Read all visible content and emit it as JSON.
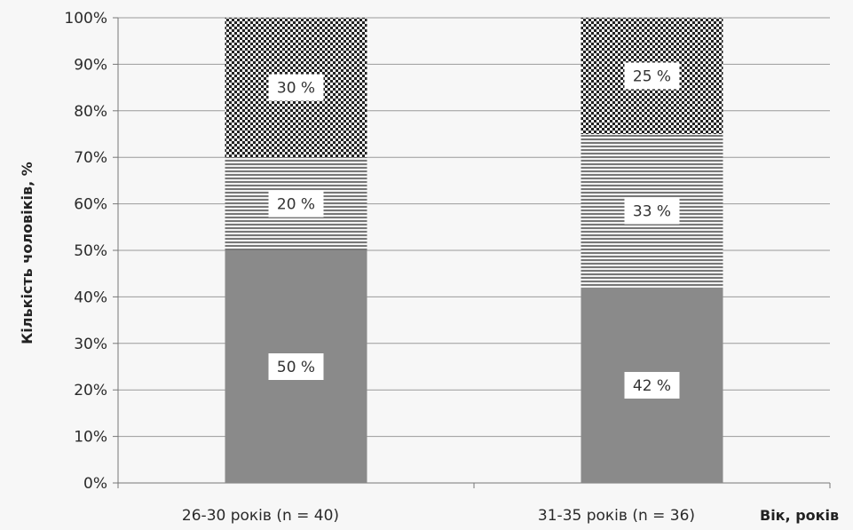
{
  "chart_data": {
    "type": "bar",
    "stacked": true,
    "title": "",
    "xlabel": "Вік, років",
    "ylabel": "Кількість чоловіків, %",
    "ylim": [
      0,
      100
    ],
    "yticks": [
      "0%",
      "10%",
      "20%",
      "30%",
      "40%",
      "50%",
      "60%",
      "70%",
      "80%",
      "90%",
      "100%"
    ],
    "grid": true,
    "legend": "none",
    "categories": [
      "26-30 років (n = 40)",
      "31-35 років (n = 36)"
    ],
    "series": [
      {
        "values": [
          50,
          42
        ],
        "labels": [
          "50 %",
          "42 %"
        ],
        "color": "#8a8a8a",
        "pattern": "solid"
      },
      {
        "values": [
          20,
          33
        ],
        "labels": [
          "20 %",
          "33 %"
        ],
        "color": "#7a7a7a",
        "pattern": "horizontal-lines"
      },
      {
        "values": [
          30,
          25
        ],
        "labels": [
          "30 %",
          "25 %"
        ],
        "color": "#2a2a2a",
        "pattern": "checker"
      }
    ]
  }
}
